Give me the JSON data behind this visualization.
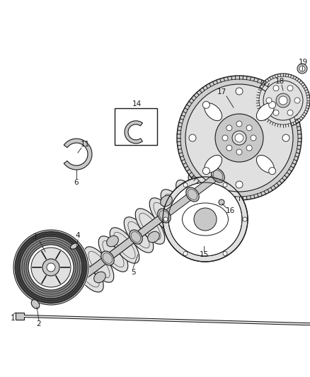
{
  "bg_color": "#ffffff",
  "line_color": "#1a1a1a",
  "fig_width": 4.38,
  "fig_height": 5.33,
  "dpi": 100,
  "gray_fill": "#c8c8c8",
  "light_gray": "#e0e0e0",
  "dark_gray": "#888888",
  "black": "#1a1a1a",
  "white": "#ffffff"
}
